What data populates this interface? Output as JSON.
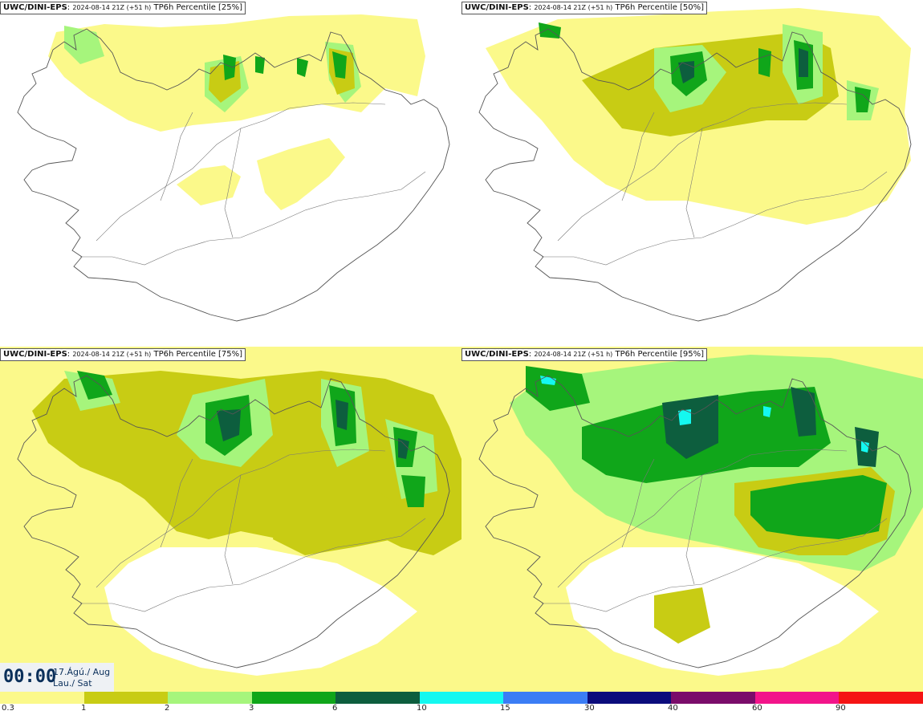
{
  "panels": [
    {
      "model": "UWC/DINI-EPS",
      "run_text": "2024-08-14 21Z (+51 h)",
      "product": "TP6h Percentile [25%]"
    },
    {
      "model": "UWC/DINI-EPS",
      "run_text": "2024-08-14 21Z (+51 h)",
      "product": "TP6h Percentile [50%]"
    },
    {
      "model": "UWC/DINI-EPS",
      "run_text": "2024-08-14 21Z (+51 h)",
      "product": "TP6h Percentile [75%]"
    },
    {
      "model": "UWC/DINI-EPS",
      "run_text": "2024-08-14 21Z (+51 h)",
      "product": "TP6h Percentile [95%]"
    }
  ],
  "valid_time": {
    "time": "00:00",
    "date": "17.Ágú./ Aug",
    "day": "Lau./ Sat"
  },
  "legend": {
    "labels": [
      "0.3",
      "1",
      "2",
      "3",
      "6",
      "10",
      "15",
      "30",
      "40",
      "60",
      "90"
    ],
    "colors": [
      "#fbf98a",
      "#c8cc14",
      "#a6f57c",
      "#10a61a",
      "#0d5e3e",
      "#14f8f0",
      "#3b7df5",
      "#0b0c7c",
      "#7a0c6a",
      "#f2148a",
      "#f51414"
    ]
  },
  "colors": {
    "light_yellow": "#fbf98a",
    "olive": "#c8cc14",
    "light_green": "#a6f57c",
    "green": "#10a61a",
    "dark_green": "#0d5e3e",
    "cyan": "#14f8f0",
    "coast": "#555555"
  }
}
